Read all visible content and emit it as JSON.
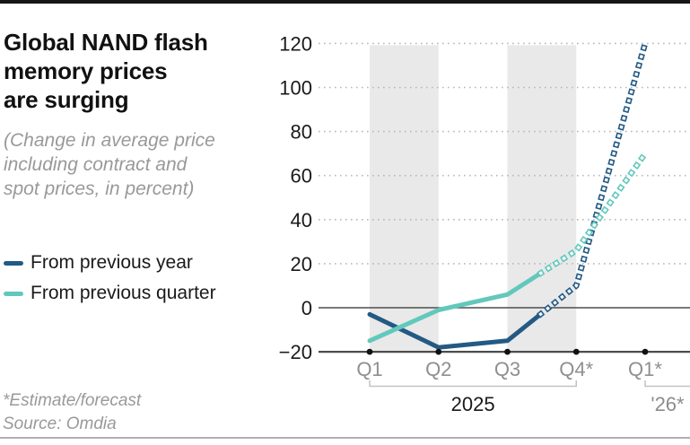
{
  "header": {
    "title": "Global NAND flash\nmemory prices\nare surging",
    "subtitle": "(Change in average price\nincluding contract and\nspot prices, in percent)"
  },
  "legend": {
    "items": [
      {
        "label": "From previous year",
        "color": "#235a84"
      },
      {
        "label": "From previous quarter",
        "color": "#62c8bc"
      }
    ]
  },
  "footer": {
    "note": "*Estimate/forecast",
    "source": "Source: Omdia"
  },
  "chart_data": {
    "type": "line",
    "title": "Global NAND flash memory prices are surging",
    "subtitle": "Change in average price including contract and spot prices, in percent",
    "categories": [
      "Q1",
      "Q2",
      "Q3",
      "Q4*",
      "Q1*"
    ],
    "x_group_labels": [
      {
        "label": "2025",
        "span": [
          0,
          3
        ],
        "color": "#1a1a1a"
      },
      {
        "label": "'26*",
        "span": [
          4,
          4
        ],
        "color": "#8c8c8c"
      }
    ],
    "series": [
      {
        "name": "From previous year",
        "color": "#235a84",
        "values": [
          -3,
          -18,
          -15,
          10,
          120
        ]
      },
      {
        "name": "From previous quarter",
        "color": "#62c8bc",
        "values": [
          -15,
          -1,
          6,
          26,
          70
        ]
      }
    ],
    "forecast": {
      "dashed_from_between": [
        2,
        3
      ],
      "fraction": 0.45,
      "style": "hollow-dash"
    },
    "yticks": [
      120,
      100,
      80,
      60,
      40,
      20,
      0,
      -20
    ],
    "ylim": [
      -20,
      120
    ],
    "xlabel": "",
    "ylabel": "",
    "grid": "dotted-horizontal",
    "zero_line": true,
    "shaded_bands": [
      [
        0,
        1
      ],
      [
        2,
        3
      ]
    ],
    "band_color": "#e9e9e9",
    "tick_label_color": "#8f8f8f",
    "axis_label_color": "#1a1a1a",
    "legend_position": "left"
  }
}
